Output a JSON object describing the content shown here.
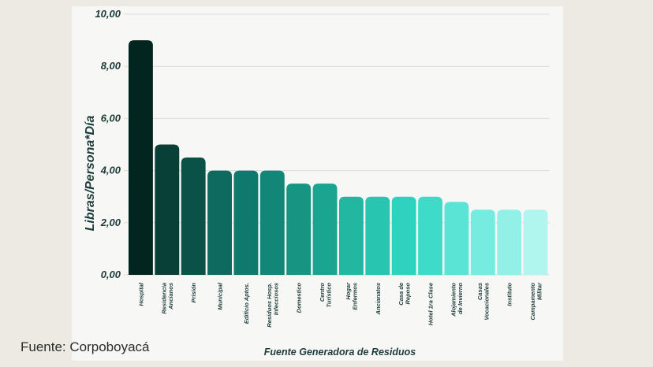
{
  "source_note": "Fuente: Corpoboyacá",
  "chart_data": {
    "type": "bar",
    "xlabel": "Fuente Generadora de Residuos",
    "ylabel": "Libras/Persona*Día",
    "ylim": [
      0,
      10
    ],
    "yticks": [
      "0,00",
      "2,00",
      "4,00",
      "6,00",
      "8,00",
      "10,00"
    ],
    "grid": true,
    "categories": [
      [
        "Hospital"
      ],
      [
        "Residencia",
        "Ancianos"
      ],
      [
        "Prisión"
      ],
      [
        "Municipal"
      ],
      [
        "Edificio Aptos."
      ],
      [
        "Residuos Hosp.",
        "Infecciosos"
      ],
      [
        "Domestico"
      ],
      [
        "Centro",
        "Turístico"
      ],
      [
        "Hogar",
        "Enfermos"
      ],
      [
        "Ancianatos"
      ],
      [
        "Casa de",
        "Reposo"
      ],
      [
        "Hotel 1ra Clase"
      ],
      [
        "Alojamiento",
        "de Invierno"
      ],
      [
        "Casas",
        "Vocacionales"
      ],
      [
        "Instituto"
      ],
      [
        "Campamento",
        "Militar"
      ]
    ],
    "values": [
      9.0,
      5.0,
      4.5,
      4.0,
      4.0,
      4.0,
      3.5,
      3.5,
      3.0,
      3.0,
      3.0,
      3.0,
      2.8,
      2.5,
      2.5,
      2.5
    ],
    "colors": [
      "#03251f",
      "#083f37",
      "#0a5148",
      "#0e6a5f",
      "#10796d",
      "#128677",
      "#169583",
      "#1aa591",
      "#22b7a1",
      "#28c5b1",
      "#2fd2bf",
      "#3edbc9",
      "#5ae4d5",
      "#76ebdf",
      "#93f0e6",
      "#b0f5ee"
    ]
  }
}
